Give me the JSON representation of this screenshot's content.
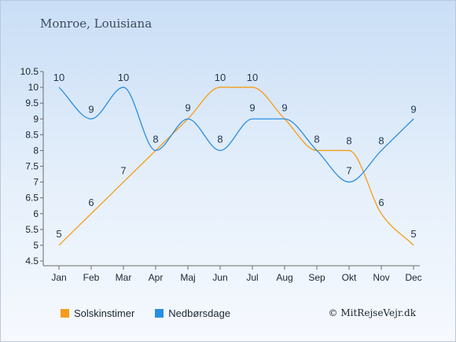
{
  "title": "Monroe, Louisiana",
  "credit": "© MitRejseVejr.dk",
  "chart_data": {
    "type": "line",
    "categories": [
      "Jan",
      "Feb",
      "Mar",
      "Apr",
      "Maj",
      "Jun",
      "Jul",
      "Aug",
      "Sep",
      "Okt",
      "Nov",
      "Dec"
    ],
    "y_ticks": [
      "4.5",
      "5",
      "5.5",
      "6",
      "6.5",
      "7",
      "7.5",
      "8",
      "8.5",
      "9",
      "9.5",
      "10",
      "10.5"
    ],
    "ylim": [
      4.5,
      10.5
    ],
    "grid": false,
    "legend_position": "bottom-left",
    "series": [
      {
        "name": "Solskinstimer",
        "color": "#f59c1a",
        "values": [
          5,
          6,
          7,
          8,
          9,
          10,
          10,
          9,
          8,
          8,
          6,
          5
        ],
        "labels": [
          "5",
          "6",
          "7",
          "8",
          "9",
          "10",
          "10",
          "9",
          "8",
          "8",
          "6",
          "5"
        ]
      },
      {
        "name": "Nedbørsdage",
        "color": "#2a8ee0",
        "values": [
          10,
          9,
          10,
          8,
          9,
          8,
          9,
          9,
          8,
          7,
          8,
          9
        ],
        "labels": [
          "10",
          "9",
          "10",
          "8",
          "9",
          "8",
          "9",
          "9",
          "8",
          "7",
          "8",
          "9"
        ]
      }
    ]
  }
}
